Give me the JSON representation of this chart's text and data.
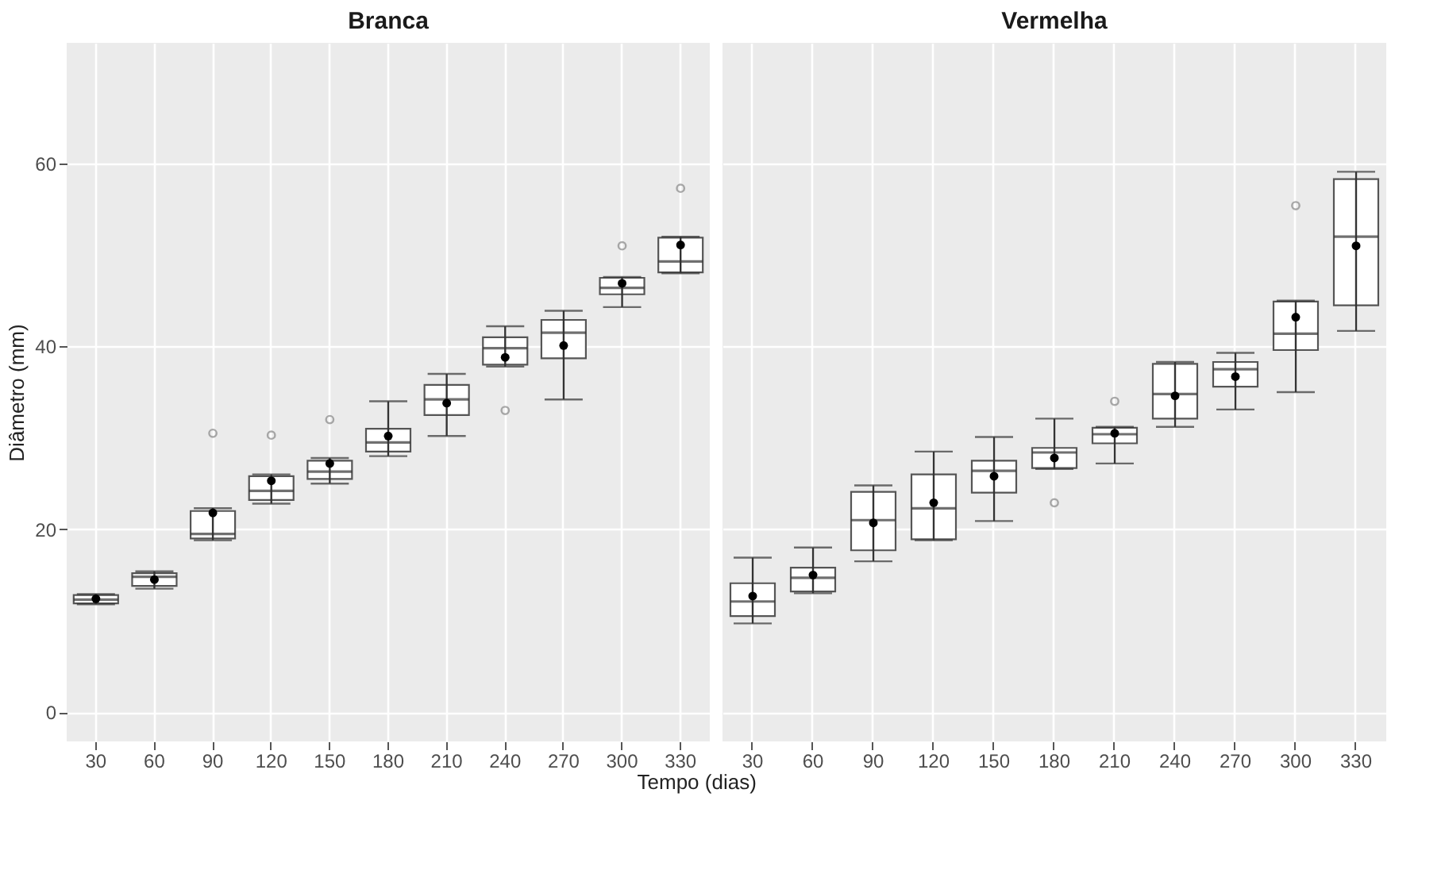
{
  "chart_data": [
    {
      "type": "box",
      "title": "Branca",
      "ylabel": "Diâmetro (mm)",
      "xlabel": "Tempo (dias)",
      "grid": true,
      "categories": [
        "30",
        "60",
        "90",
        "120",
        "150",
        "180",
        "210",
        "240",
        "270",
        "300",
        "330"
      ],
      "ylim": [
        -3.2,
        73.2
      ],
      "yticks": [
        0,
        20,
        40,
        60
      ],
      "boxes": [
        {
          "low": 11.8,
          "q1": 11.9,
          "median": 12.3,
          "q3": 12.8,
          "high": 12.9,
          "mean": 12.4
        },
        {
          "low": 13.5,
          "q1": 13.8,
          "median": 14.8,
          "q3": 15.2,
          "high": 15.4,
          "mean": 14.5
        },
        {
          "low": 18.8,
          "q1": 19.0,
          "median": 19.5,
          "q3": 22.0,
          "high": 22.3,
          "mean": 21.8,
          "outliers": [
            30.5
          ]
        },
        {
          "low": 22.8,
          "q1": 23.2,
          "median": 24.2,
          "q3": 25.8,
          "high": 26.0,
          "mean": 25.3,
          "outliers": [
            30.3
          ]
        },
        {
          "low": 25.0,
          "q1": 25.5,
          "median": 26.3,
          "q3": 27.5,
          "high": 27.8,
          "mean": 27.2,
          "outliers": [
            32.0
          ]
        },
        {
          "low": 28.0,
          "q1": 28.5,
          "median": 29.5,
          "q3": 31.0,
          "high": 34.0,
          "mean": 30.2
        },
        {
          "low": 30.2,
          "q1": 32.5,
          "median": 34.2,
          "q3": 35.8,
          "high": 37.0,
          "mean": 33.8
        },
        {
          "low": 37.8,
          "q1": 38.0,
          "median": 39.8,
          "q3": 41.0,
          "high": 42.2,
          "mean": 38.8,
          "outliers": [
            33.0
          ]
        },
        {
          "low": 34.2,
          "q1": 38.7,
          "median": 41.5,
          "q3": 42.9,
          "high": 43.9,
          "mean": 40.1
        },
        {
          "low": 44.3,
          "q1": 45.7,
          "median": 46.4,
          "q3": 47.5,
          "high": 47.6,
          "mean": 46.9,
          "outliers": [
            51.0
          ]
        },
        {
          "low": 48.0,
          "q1": 48.1,
          "median": 49.3,
          "q3": 51.9,
          "high": 52.0,
          "mean": 51.1,
          "outliers": [
            57.3
          ]
        }
      ]
    },
    {
      "type": "box",
      "title": "Vermelha",
      "grid": true,
      "tick_labels": "x",
      "categories": [
        "30",
        "60",
        "90",
        "120",
        "150",
        "180",
        "210",
        "240",
        "270",
        "300",
        "330"
      ],
      "ylim": [
        -3.2,
        73.2
      ],
      "yticks": [
        0,
        20,
        40,
        60
      ],
      "boxes": [
        {
          "low": 9.7,
          "q1": 10.5,
          "median": 12.1,
          "q3": 14.1,
          "high": 16.9,
          "mean": 12.7
        },
        {
          "low": 13.0,
          "q1": 13.2,
          "median": 14.7,
          "q3": 15.8,
          "high": 18.0,
          "mean": 15.0
        },
        {
          "low": 16.5,
          "q1": 17.7,
          "median": 21.0,
          "q3": 24.1,
          "high": 24.8,
          "mean": 20.7
        },
        {
          "low": 18.8,
          "q1": 18.9,
          "median": 22.3,
          "q3": 26.0,
          "high": 28.5,
          "mean": 22.9
        },
        {
          "low": 20.9,
          "q1": 24.0,
          "median": 26.4,
          "q3": 27.5,
          "high": 30.1,
          "mean": 25.8
        },
        {
          "low": 26.6,
          "q1": 26.7,
          "median": 28.4,
          "q3": 28.9,
          "high": 32.1,
          "mean": 27.8,
          "outliers": [
            22.9
          ]
        },
        {
          "low": 27.2,
          "q1": 29.4,
          "median": 30.4,
          "q3": 31.1,
          "high": 31.2,
          "mean": 30.5,
          "outliers": [
            34.0
          ]
        },
        {
          "low": 31.2,
          "q1": 32.1,
          "median": 34.8,
          "q3": 38.1,
          "high": 38.3,
          "mean": 34.6
        },
        {
          "low": 33.1,
          "q1": 35.6,
          "median": 37.5,
          "q3": 38.3,
          "high": 39.3,
          "mean": 36.7
        },
        {
          "low": 35.0,
          "q1": 39.6,
          "median": 41.4,
          "q3": 44.9,
          "high": 45.0,
          "mean": 43.2,
          "outliers": [
            55.4
          ]
        },
        {
          "low": 41.7,
          "q1": 44.5,
          "median": 52.0,
          "q3": 58.3,
          "high": 59.1,
          "mean": 51.0
        }
      ]
    }
  ]
}
